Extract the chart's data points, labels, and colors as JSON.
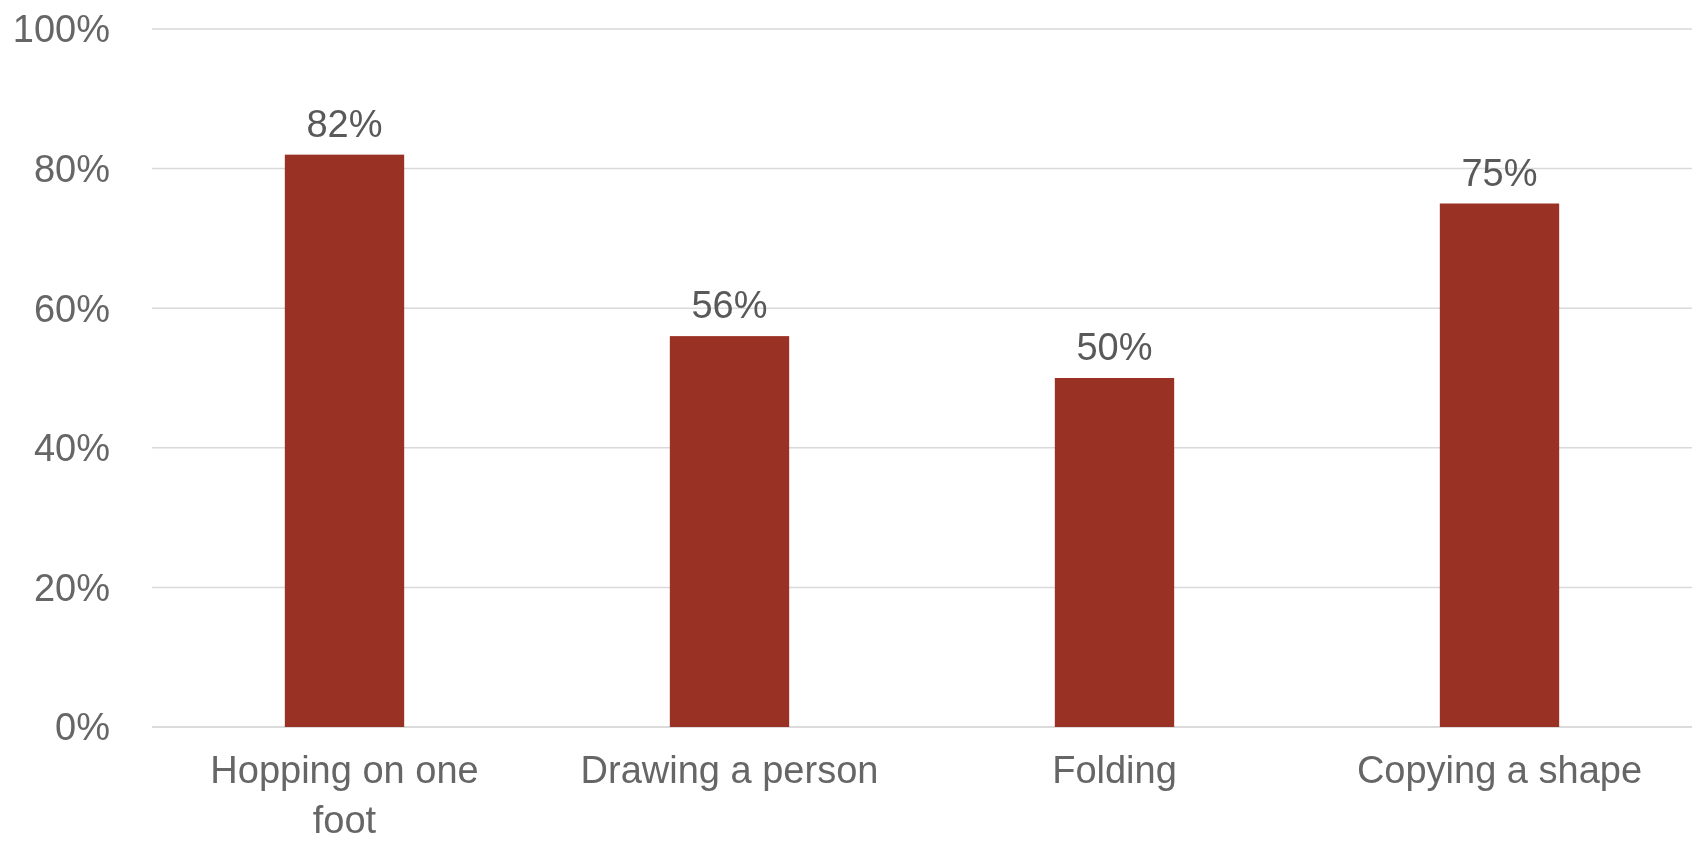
{
  "chart_data": {
    "type": "bar",
    "categories": [
      "Hopping on one foot",
      "Drawing a person",
      "Folding",
      "Copying a shape"
    ],
    "values": [
      82,
      56,
      50,
      75
    ],
    "value_labels": [
      "82%",
      "56%",
      "50%",
      "75%"
    ],
    "color": "#993125",
    "ylim": [
      0,
      100
    ],
    "yticks": [
      {
        "value": 0,
        "label": "0%"
      },
      {
        "value": 20,
        "label": "20%"
      },
      {
        "value": 40,
        "label": "40%"
      },
      {
        "value": 60,
        "label": "60%"
      },
      {
        "value": 80,
        "label": "80%"
      },
      {
        "value": 100,
        "label": "100%"
      }
    ],
    "grid": "y"
  }
}
